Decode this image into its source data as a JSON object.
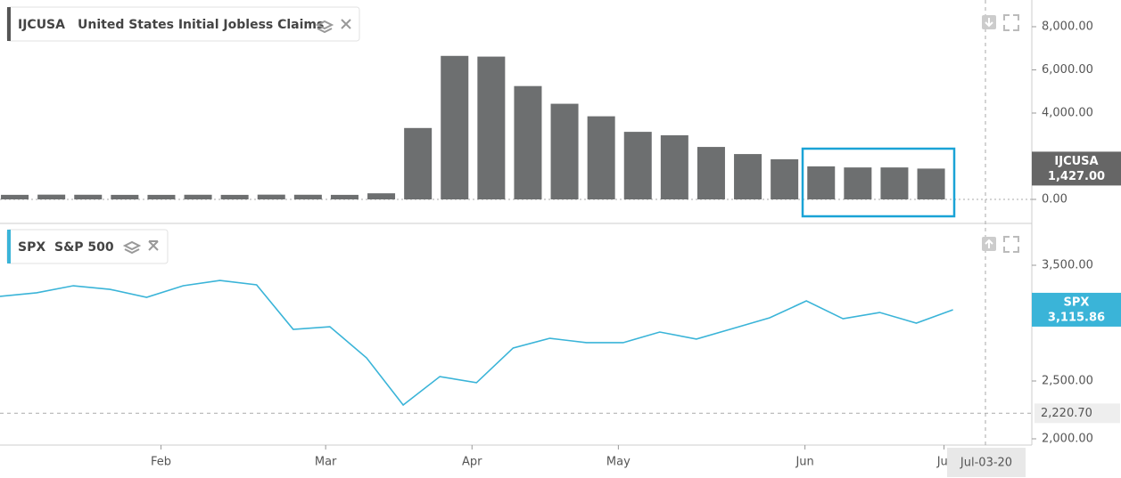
{
  "chart_data": [
    {
      "type": "bar",
      "ticker": "IJCUSA",
      "title": "United States Initial Jobless Claims",
      "color": "#6d6f70",
      "values": [
        211,
        220,
        215,
        210,
        210,
        215,
        210,
        220,
        215,
        210,
        282,
        3307,
        6648,
        6615,
        5250,
        4430,
        3850,
        3130,
        2970,
        2430,
        2100,
        1860,
        1530,
        1480,
        1480,
        1427
      ],
      "last_value_label": {
        "value": 1427,
        "label": "1,427.00"
      },
      "ylim": [
        -1072,
        9237
      ],
      "yticks": [
        {
          "value": 0,
          "label": "0.00"
        },
        {
          "value": 4000,
          "label": "4,000.00"
        },
        {
          "value": 6000,
          "label": "6,000.00"
        },
        {
          "value": 8000,
          "label": "8,000.00"
        }
      ]
    },
    {
      "type": "line",
      "ticker": "SPX",
      "title": "S&P 500",
      "color": "#3ab4d8",
      "values": [
        3231,
        3262,
        3323,
        3292,
        3223,
        3323,
        3369,
        3331,
        2946,
        2969,
        2700,
        2292,
        2538,
        2485,
        2785,
        2869,
        2831,
        2831,
        2923,
        2862,
        2954,
        3046,
        3192,
        3038,
        3092,
        3000,
        3115.86
      ],
      "last_value_label": {
        "value": 3115.86,
        "label": "3,115.86"
      },
      "marker": {
        "value": 2220.7,
        "label": "2,220.70"
      },
      "ylim": [
        1946,
        3854
      ],
      "yticks": [
        {
          "value": 2000,
          "label": "2,000.00"
        },
        {
          "value": 2500,
          "label": "2,500.00"
        },
        {
          "value": 3500,
          "label": "3,500.00"
        }
      ],
      "xlim": [
        0,
        28.2
      ],
      "xticks": [
        {
          "value": 4.4,
          "label": "Feb"
        },
        {
          "value": 8.9,
          "label": "Mar"
        },
        {
          "value": 12.9,
          "label": "Apr"
        },
        {
          "value": 16.9,
          "label": "May"
        },
        {
          "value": 22,
          "label": "Jun"
        },
        {
          "value": 25.8,
          "label": "Jul"
        }
      ],
      "cursor_label": "Jul-03-20"
    }
  ]
}
